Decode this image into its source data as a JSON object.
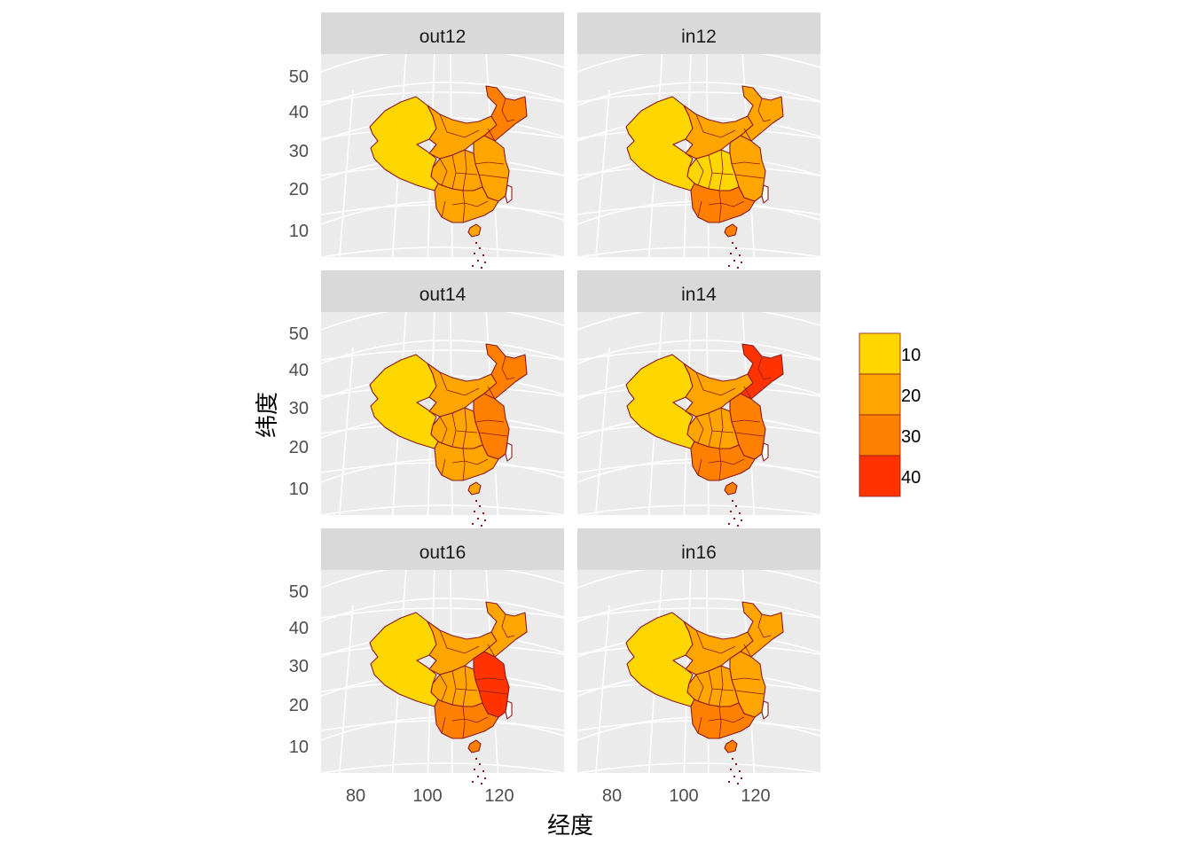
{
  "chart_data": {
    "type": "choropleth-facet",
    "xlabel": "经度",
    "ylabel": "纬度",
    "x_ticks": [
      80,
      100,
      120
    ],
    "y_ticks": [
      10,
      20,
      30,
      40,
      50
    ],
    "panels": [
      {
        "label": "out12",
        "color_map": {
          "NE": 3,
          "N": 2,
          "E": 2,
          "C": 2,
          "S": 2,
          "NW": 1
        }
      },
      {
        "label": "in12",
        "color_map": {
          "NE": 2,
          "N": 2,
          "E": 2,
          "C": 1,
          "S": 3,
          "NW": 1
        }
      },
      {
        "label": "out14",
        "color_map": {
          "NE": 3,
          "N": 2,
          "E": 3,
          "C": 2,
          "S": 2,
          "NW": 1
        }
      },
      {
        "label": "in14",
        "color_map": {
          "NE": 4,
          "N": 2,
          "E": 3,
          "C": 2,
          "S": 3,
          "NW": 1
        }
      },
      {
        "label": "out16",
        "color_map": {
          "NE": 2,
          "N": 2,
          "E": 4,
          "C": 2,
          "S": 3,
          "NW": 1
        }
      },
      {
        "label": "in16",
        "color_map": {
          "NE": 2,
          "N": 2,
          "E": 2,
          "C": 2,
          "S": 3,
          "NW": 1
        }
      }
    ],
    "legend": {
      "placement": "right",
      "items": [
        {
          "label": "10",
          "color": "#FFD700"
        },
        {
          "label": "20",
          "color": "#FFA500"
        },
        {
          "label": "30",
          "color": "#FF7F00"
        },
        {
          "label": "40",
          "color": "#FF3300"
        }
      ]
    },
    "colors": {
      "panel_bg": "#EBEBEB",
      "strip_bg": "#D9D9D9",
      "grid": "#FFFFFF",
      "border": "#8B1A1A",
      "nodata": "#FFFFFF"
    }
  }
}
